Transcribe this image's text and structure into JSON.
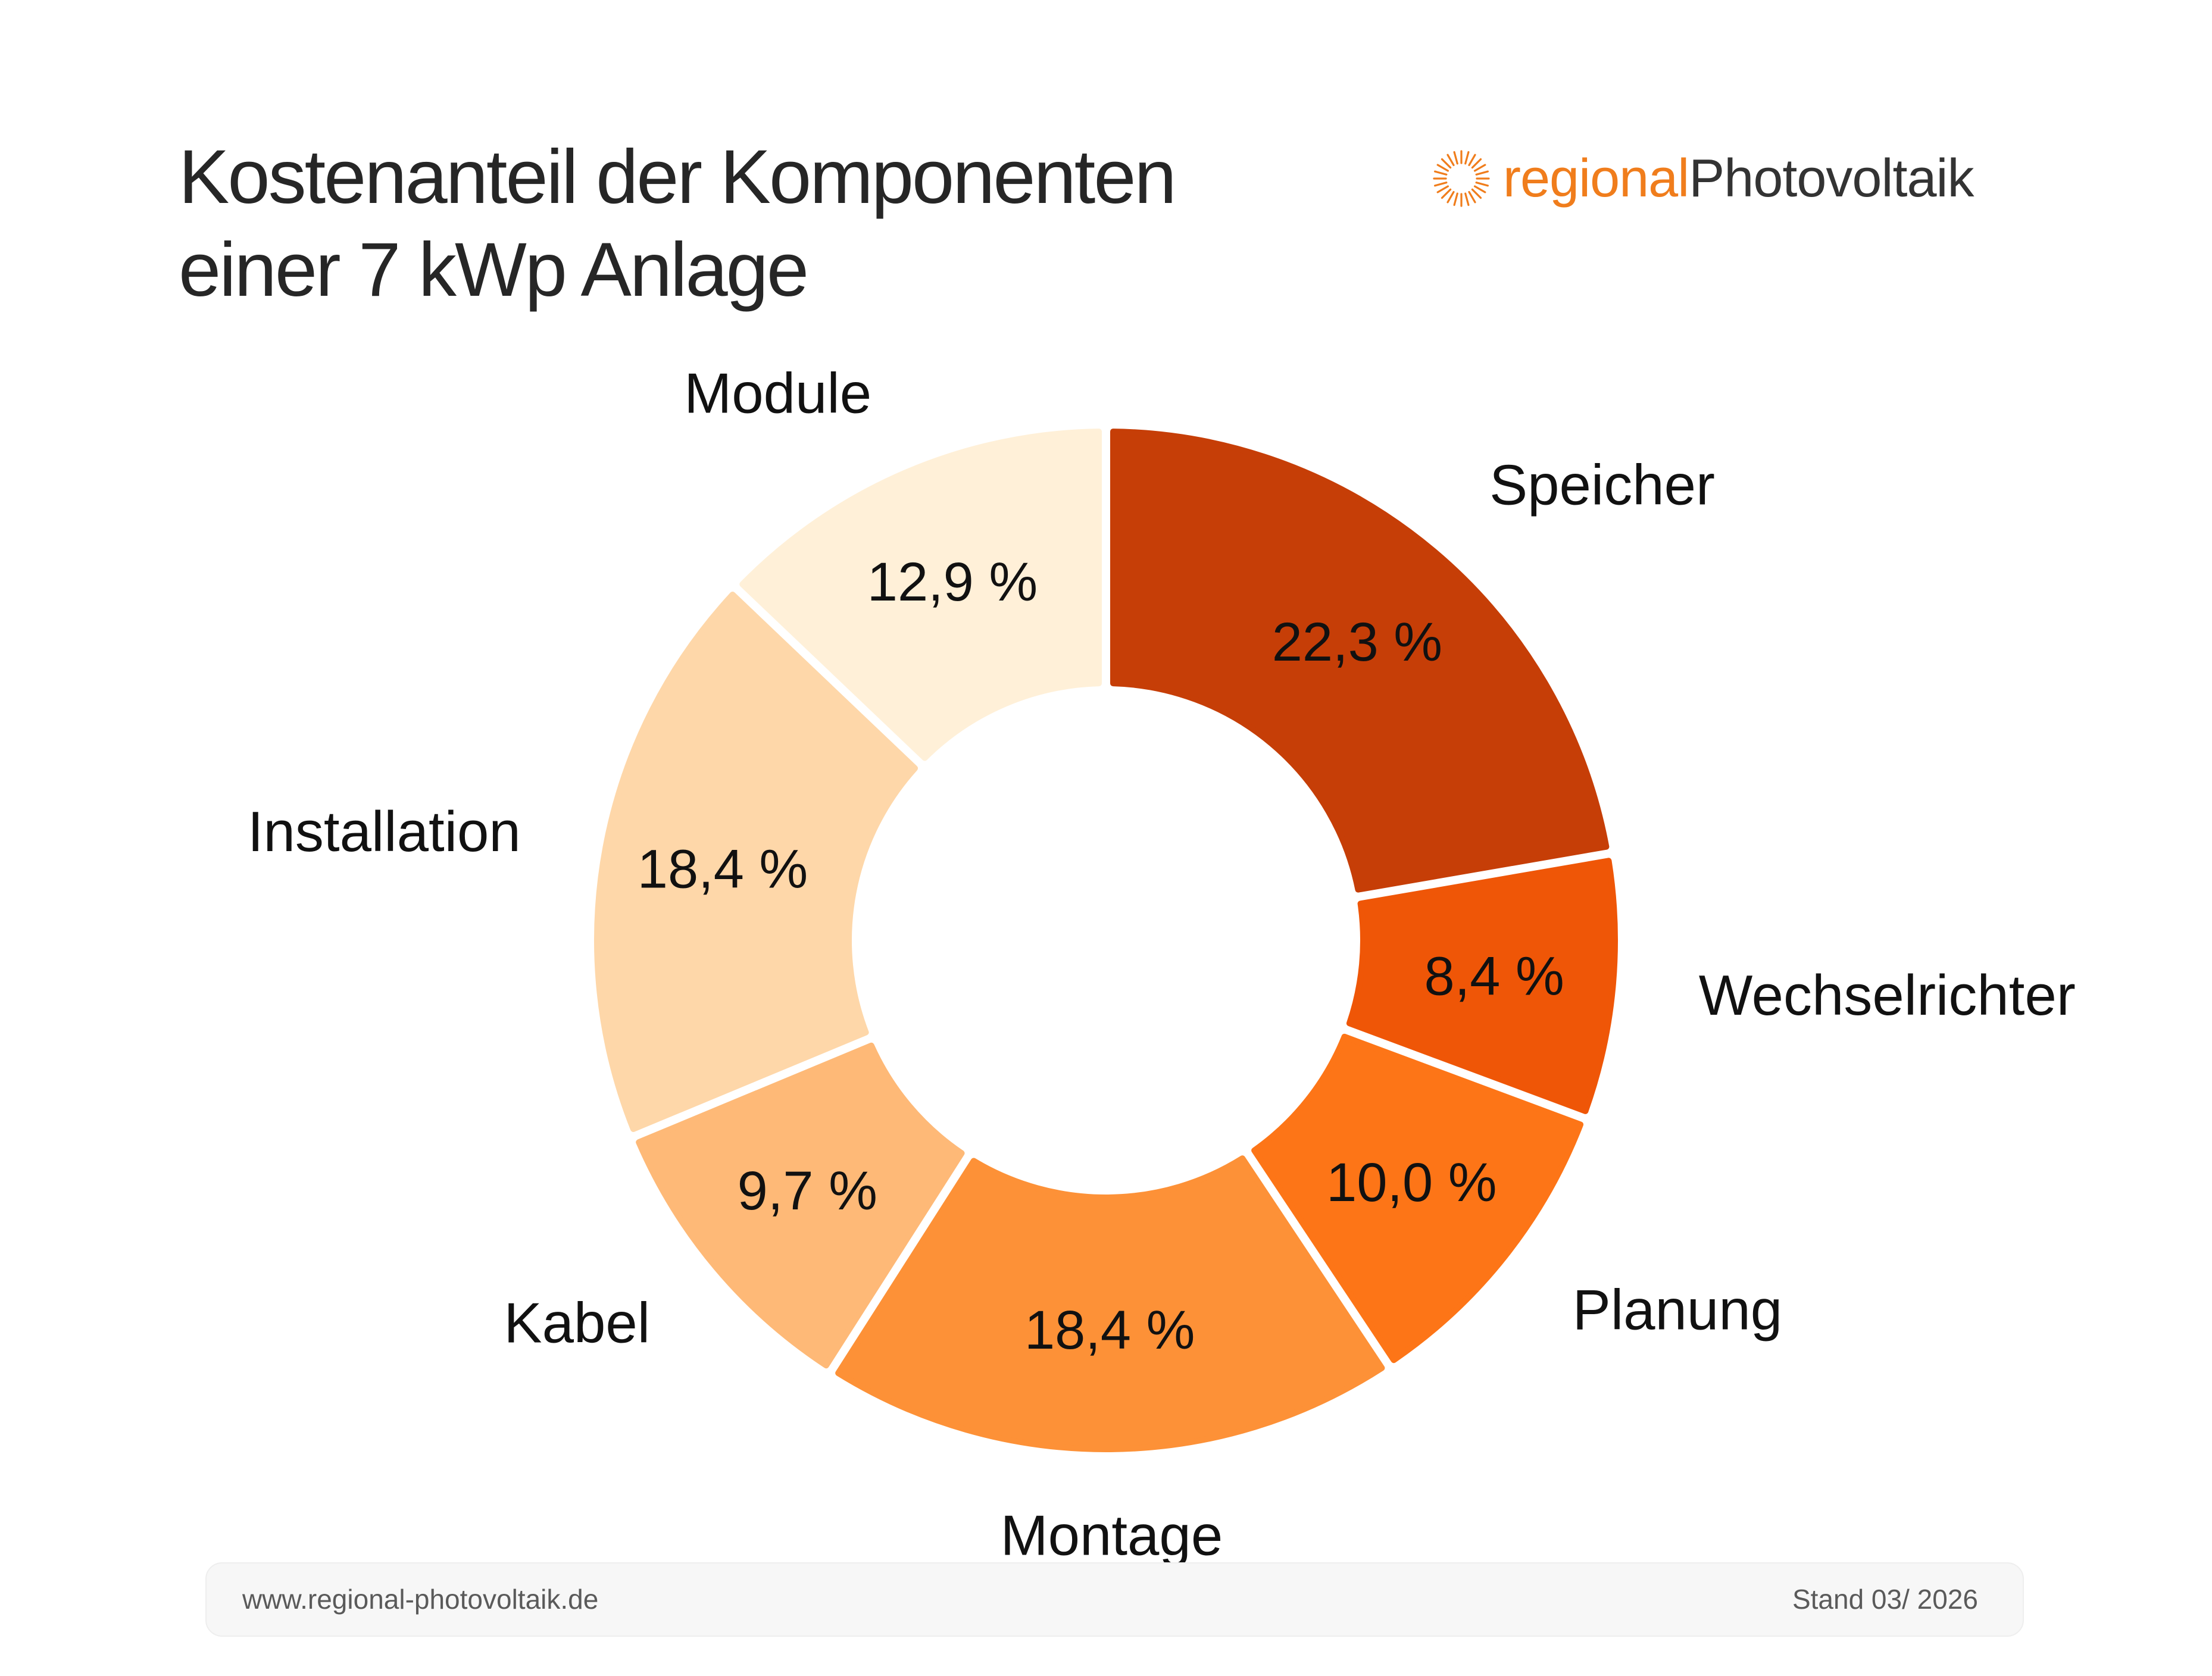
{
  "title_line1": "Kostenanteil der Komponenten",
  "title_line2": "einer 7 kWp Anlage",
  "logo": {
    "part1": "regional",
    "part2": "Photovoltaik",
    "icon": "sun-icon",
    "color1": "#f07d1c",
    "color2": "#333333"
  },
  "footer": {
    "url": "www.regional-photovoltaik.de",
    "date": "Stand 03/ 2026"
  },
  "chart_data": {
    "type": "pie",
    "variant": "donut",
    "start_angle_deg": 0,
    "direction": "clockwise",
    "slices": [
      {
        "label": "Speicher",
        "value": 22.3,
        "value_label": "22,3 %",
        "color": "#c63e07"
      },
      {
        "label": "Wechselrichter",
        "value": 8.4,
        "value_label": "8,4 %",
        "color": "#ef5607"
      },
      {
        "label": "Planung",
        "value": 10.0,
        "value_label": "10,0 %",
        "color": "#fd7517"
      },
      {
        "label": "Montage",
        "value": 18.4,
        "value_label": "18,4 %",
        "color": "#fd9137"
      },
      {
        "label": "Kabel",
        "value": 9.7,
        "value_label": "9,7 %",
        "color": "#feb977"
      },
      {
        "label": "Installation",
        "value": 18.4,
        "value_label": "18,4 %",
        "color": "#fed7a9"
      },
      {
        "label": "Module",
        "value": 12.9,
        "value_label": "12,9 %",
        "color": "#fff0d8"
      }
    ]
  }
}
